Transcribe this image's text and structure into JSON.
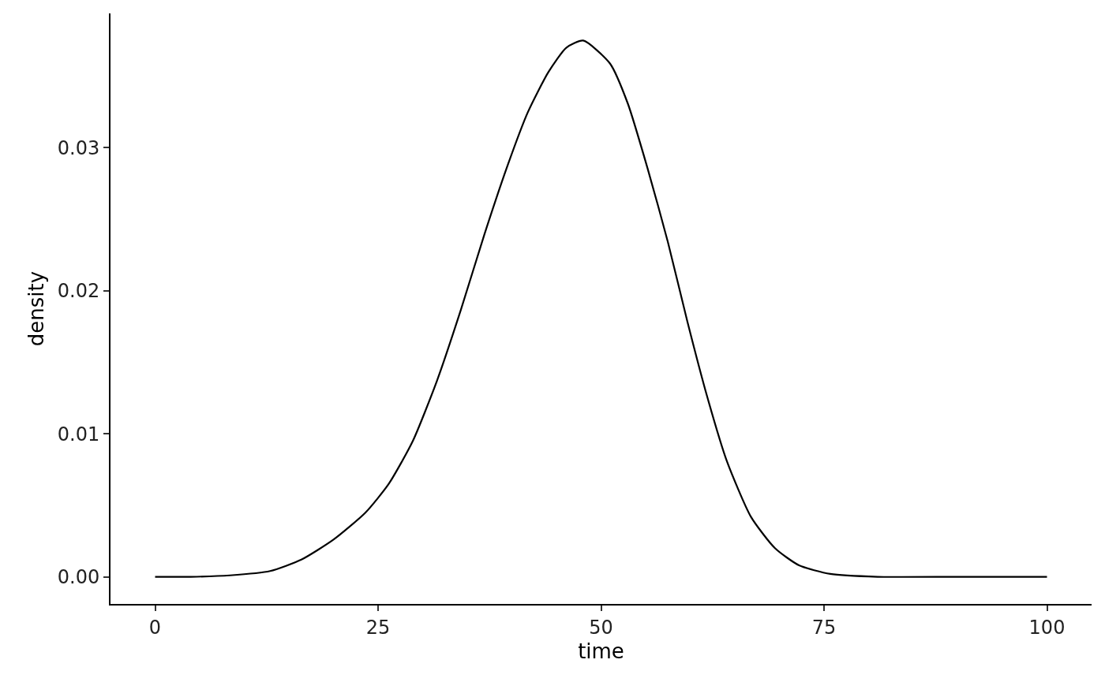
{
  "chart_data": {
    "type": "line",
    "xlabel": "time",
    "ylabel": "density",
    "x": [
      0,
      4,
      8.4,
      12.9,
      16.4,
      20.0,
      23.6,
      26.2,
      28.9,
      31.6,
      34.3,
      36.9,
      39.6,
      41.8,
      44.1,
      46.1,
      48.0,
      51.0,
      53.0,
      55.2,
      57.5,
      59.7,
      61.9,
      64.1,
      66.8,
      69.5,
      72.2,
      75.7,
      81.0,
      90,
      100
    ],
    "series": [
      {
        "color": "#000000",
        "values": [
          0,
          0,
          0.0001,
          0.0004,
          0.0012,
          0.0026,
          0.0045,
          0.0065,
          0.0095,
          0.0137,
          0.0187,
          0.0239,
          0.0289,
          0.0325,
          0.0353,
          0.037,
          0.0375,
          0.0359,
          0.0331,
          0.0286,
          0.0234,
          0.0178,
          0.0126,
          0.0081,
          0.0042,
          0.002,
          0.0008,
          0.0002,
          0,
          0,
          0
        ]
      }
    ],
    "xlim": [
      -5,
      105
    ],
    "xticks": [
      0,
      25,
      50,
      75,
      100
    ],
    "ylim": [
      -0.0019,
      0.0394
    ],
    "yticks": [
      {
        "value": 0,
        "label": "0.00"
      },
      {
        "value": 0.01,
        "label": "0.01"
      },
      {
        "value": 0.02,
        "label": "0.02"
      },
      {
        "value": 0.03,
        "label": "0.03"
      }
    ],
    "grid": false,
    "marker": "none",
    "line_style": "solid"
  }
}
